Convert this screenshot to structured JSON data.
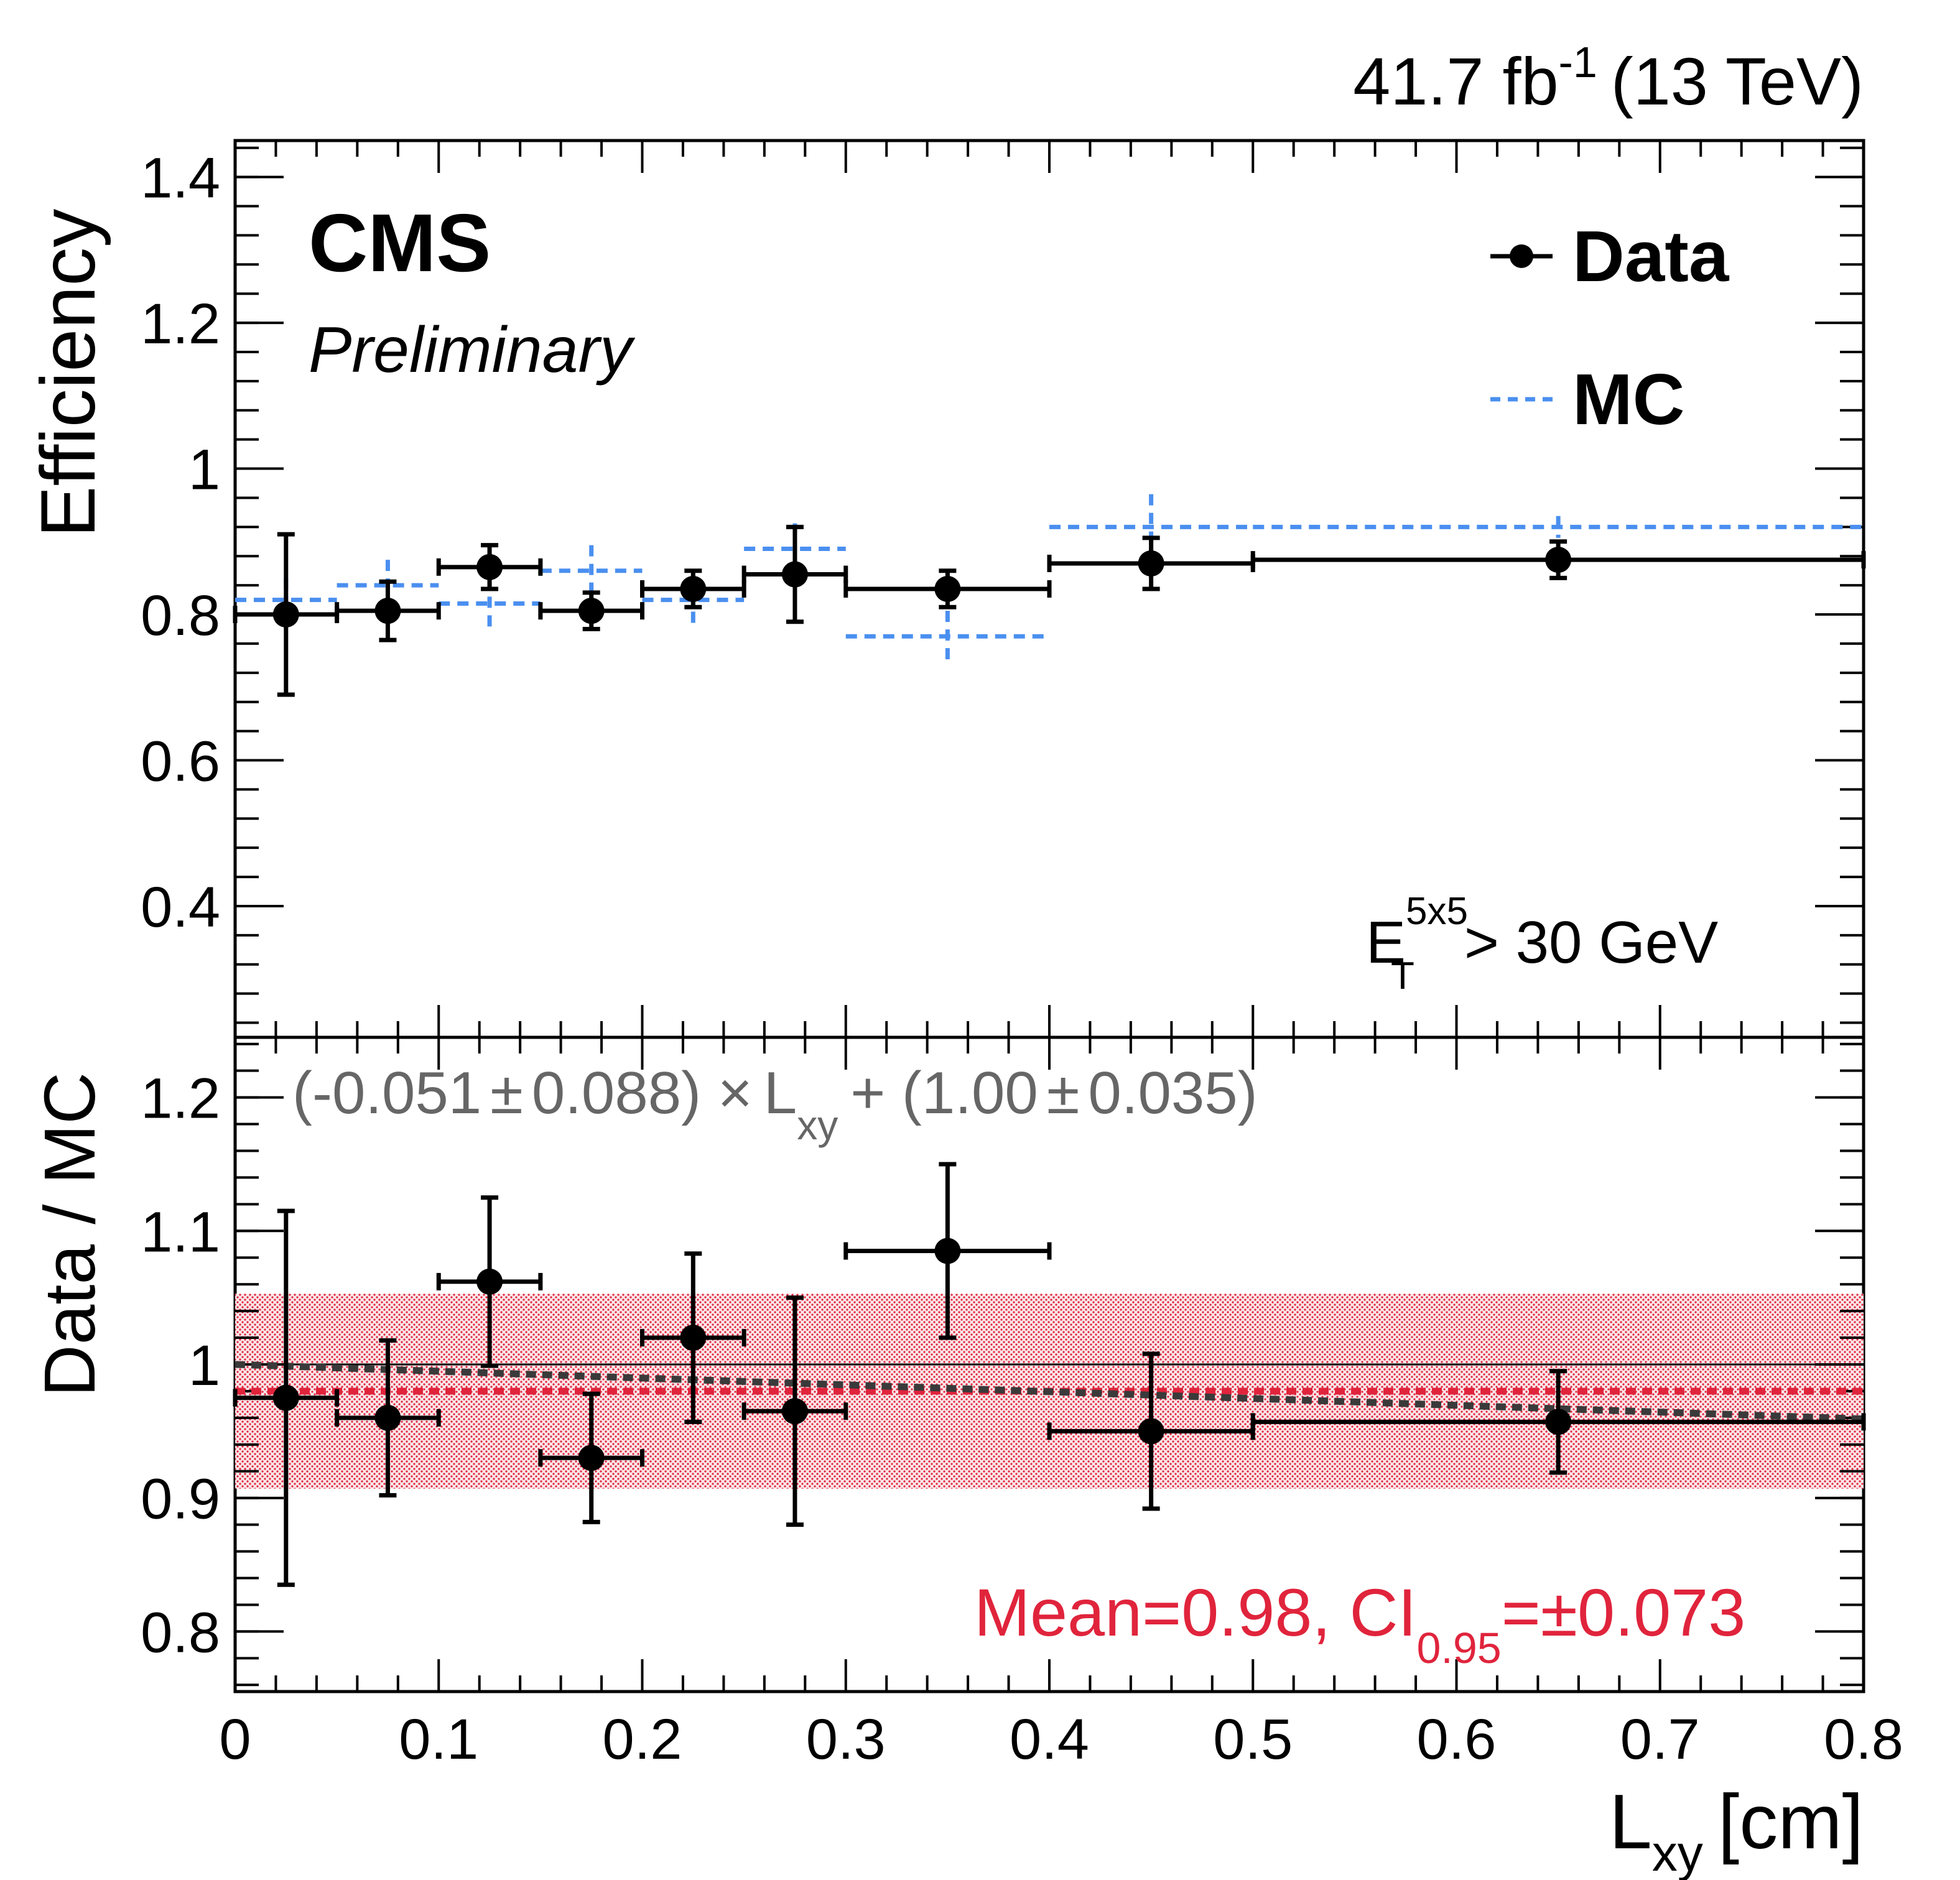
{
  "header": {
    "lumi_main": "41.7 fb",
    "lumi_sup": "-1",
    "lumi_energy": "(13 TeV)"
  },
  "labels": {
    "cms": "CMS",
    "preliminary": "Preliminary",
    "cut_main": "E",
    "cut_sup": "5x5",
    "cut_sub": "T",
    "cut_rest": "> 30 GeV",
    "fit_part1": "(-0.051",
    "fit_pm1": "±",
    "fit_part2": "0.088) ×",
    "fit_L": "L",
    "fit_xy": "xy",
    "fit_part3": "+ (1.00",
    "fit_pm2": "±",
    "fit_part4": "0.035)",
    "mean_main": "Mean=0.98, CI",
    "mean_sub": "0.95",
    "mean_rest": "=±0.073"
  },
  "colors": {
    "data": "#000000",
    "mc": "#4a8ff0",
    "band": "#e0243c",
    "fit": "#3a3a3a",
    "fit_text": "#666666"
  },
  "chart_data": [
    {
      "type": "scatter",
      "panel": "top",
      "ylabel": "Efficiency",
      "xlim": [
        0,
        0.8
      ],
      "ylim": [
        0.22,
        1.45
      ],
      "yticks": [
        0.4,
        0.6,
        0.8,
        1.0,
        1.2,
        1.4
      ],
      "ytick_labels": [
        "0.4",
        "0.6",
        "0.8",
        "1",
        "1.2",
        "1.4"
      ],
      "legend": {
        "position": "top-right",
        "entries": [
          "Data",
          "MC"
        ]
      },
      "series": [
        {
          "name": "Data",
          "style": "points",
          "bins_lo": [
            0.0,
            0.05,
            0.1,
            0.15,
            0.2,
            0.25,
            0.3,
            0.4,
            0.5
          ],
          "bins_hi": [
            0.05,
            0.1,
            0.15,
            0.2,
            0.25,
            0.3,
            0.4,
            0.5,
            0.8
          ],
          "x": [
            0.025,
            0.075,
            0.125,
            0.175,
            0.225,
            0.275,
            0.35,
            0.45,
            0.65
          ],
          "y": [
            0.8,
            0.805,
            0.865,
            0.805,
            0.835,
            0.855,
            0.835,
            0.87,
            0.875
          ],
          "yerr": [
            0.11,
            0.04,
            0.03,
            0.025,
            0.025,
            0.065,
            0.025,
            0.035,
            0.025
          ]
        },
        {
          "name": "MC",
          "style": "dashed",
          "bins_lo": [
            0.0,
            0.05,
            0.1,
            0.15,
            0.2,
            0.25,
            0.3,
            0.4,
            0.5
          ],
          "bins_hi": [
            0.05,
            0.1,
            0.15,
            0.2,
            0.25,
            0.3,
            0.4,
            0.5,
            0.8
          ],
          "x": [
            0.025,
            0.075,
            0.125,
            0.175,
            0.225,
            0.275,
            0.35,
            0.45,
            0.65
          ],
          "y": [
            0.82,
            0.84,
            0.815,
            0.86,
            0.82,
            0.89,
            0.77,
            0.92,
            0.92
          ],
          "yerr": [
            0.03,
            0.035,
            0.035,
            0.035,
            0.035,
            0.035,
            0.035,
            0.045,
            0.015
          ]
        }
      ]
    },
    {
      "type": "scatter",
      "panel": "bottom",
      "ylabel": "Data / MC",
      "xlabel_main": "L",
      "xlabel_sub": "xy",
      "xlabel_rest": "[cm]",
      "xlim": [
        0,
        0.8
      ],
      "ylim": [
        0.755,
        1.245
      ],
      "xticks": [
        0,
        0.1,
        0.2,
        0.3,
        0.4,
        0.5,
        0.6,
        0.7,
        0.8
      ],
      "xtick_labels": [
        "0",
        "0.1",
        "0.2",
        "0.3",
        "0.4",
        "0.5",
        "0.6",
        "0.7",
        "0.8"
      ],
      "yticks": [
        0.8,
        0.9,
        1.0,
        1.1,
        1.2
      ],
      "ytick_labels": [
        "0.8",
        "0.9",
        "1",
        "1.1",
        "1.2"
      ],
      "reference_line": 1.0,
      "mean": 0.98,
      "ci95": 0.073,
      "fit": {
        "slope": -0.051,
        "intercept": 1.0
      },
      "series": [
        {
          "name": "Data / MC",
          "bins_lo": [
            0.0,
            0.05,
            0.1,
            0.15,
            0.2,
            0.25,
            0.3,
            0.4,
            0.5
          ],
          "bins_hi": [
            0.05,
            0.1,
            0.15,
            0.2,
            0.25,
            0.3,
            0.4,
            0.5,
            0.8
          ],
          "x": [
            0.025,
            0.075,
            0.125,
            0.175,
            0.225,
            0.275,
            0.35,
            0.45,
            0.65
          ],
          "y": [
            0.975,
            0.96,
            1.062,
            0.93,
            1.02,
            0.965,
            1.085,
            0.95,
            0.957
          ],
          "yerr": [
            0.14,
            0.058,
            0.063,
            0.048,
            0.063,
            0.085,
            0.065,
            0.058,
            0.038
          ]
        }
      ]
    }
  ]
}
